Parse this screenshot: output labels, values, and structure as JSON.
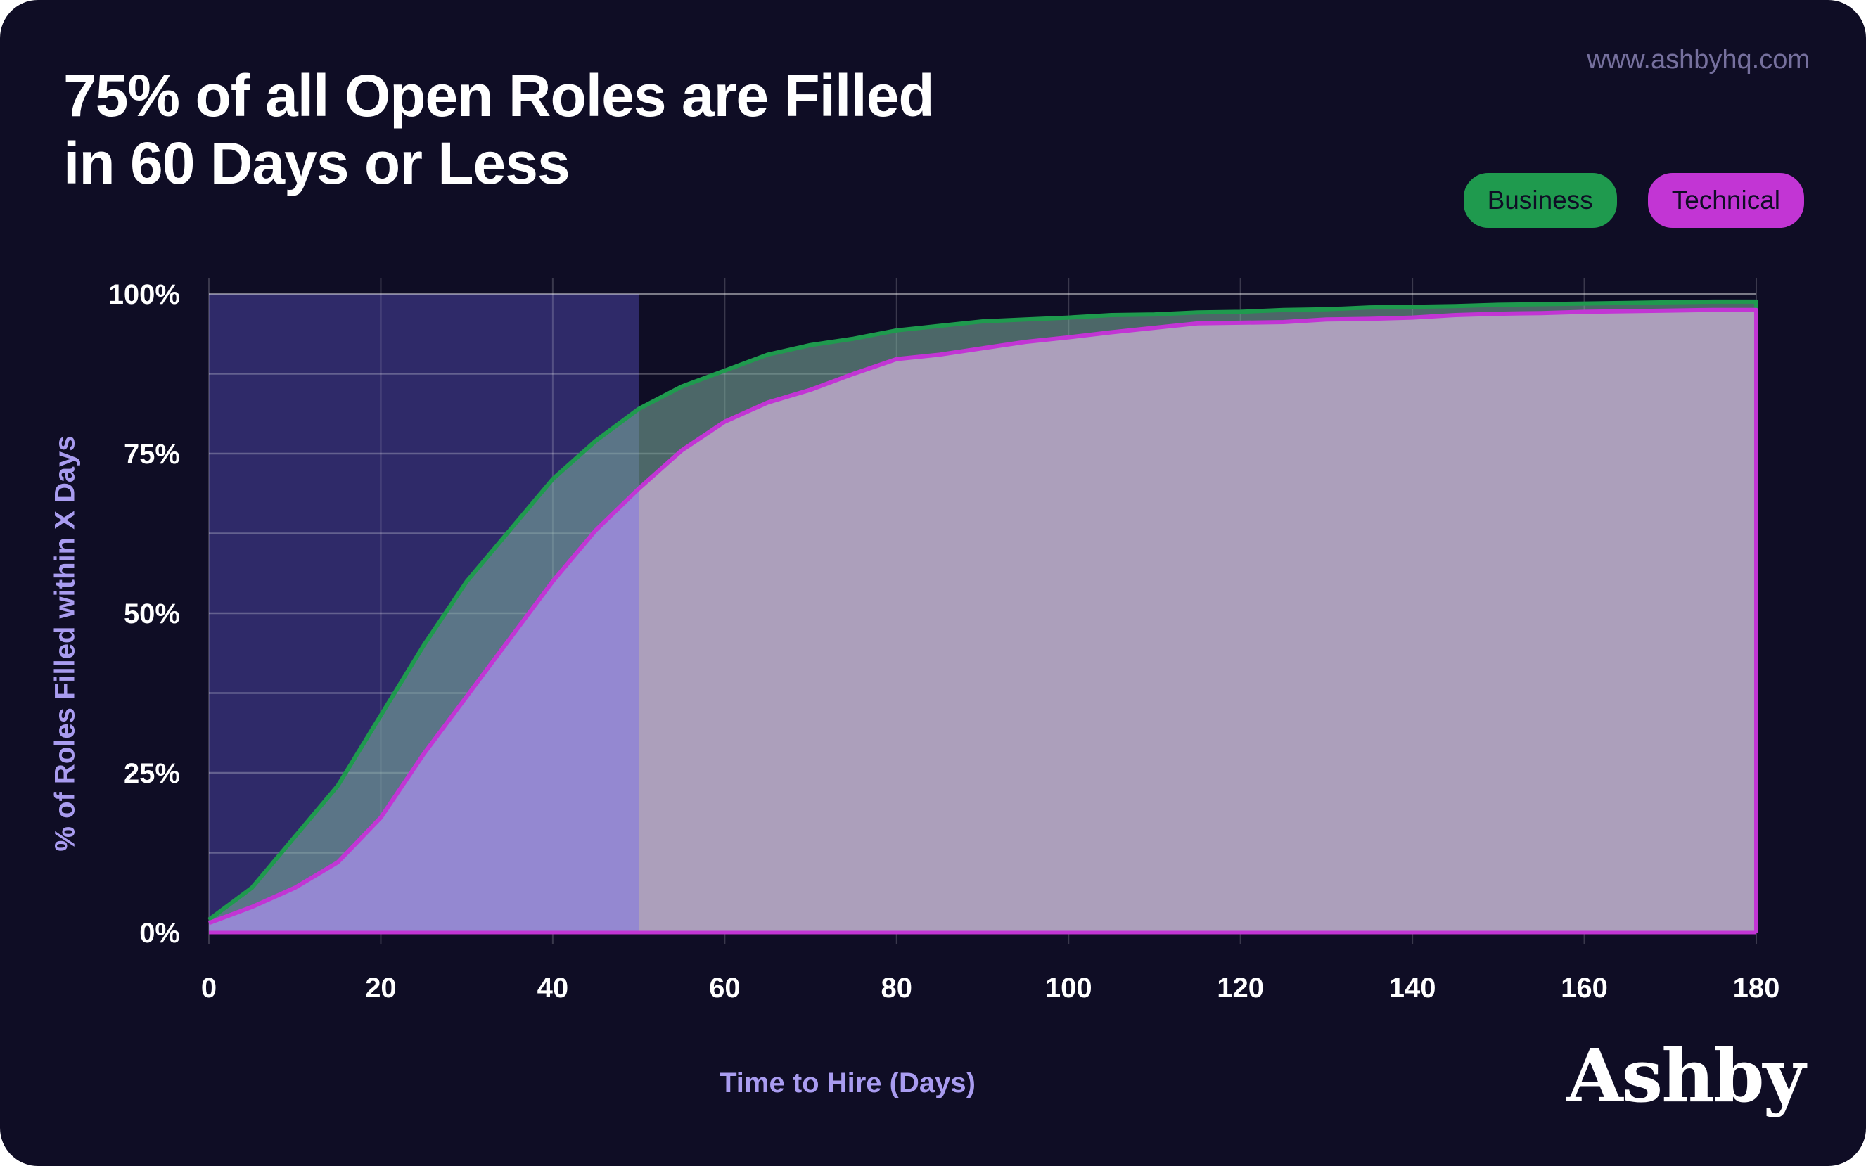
{
  "header": {
    "title_line1": "75% of all Open Roles are Filled",
    "title_line2": "in 60 Days or Less",
    "url": "www.ashbyhq.com"
  },
  "brand": {
    "logo_text": "Ashby"
  },
  "colors": {
    "background": "#0f0d25",
    "business": "#1f9a4e",
    "technical": "#c235d4",
    "highlight": "#2f2a69",
    "axis_label": "#a99cf0"
  },
  "chart_data": {
    "type": "area",
    "title": "75% of all Open Roles are Filled in 60 Days or Less",
    "xlabel": "Time to Hire (Days)",
    "ylabel": "% of Roles Filled within X Days",
    "xlim": [
      0,
      180
    ],
    "ylim": [
      0,
      100
    ],
    "xticks": [
      "0",
      "20",
      "40",
      "60",
      "80",
      "100",
      "120",
      "140",
      "160",
      "180"
    ],
    "yticks": [
      "0%",
      "25%",
      "50%",
      "75%",
      "100%"
    ],
    "grid": true,
    "legend_position": "top-right",
    "highlight_range": [
      0,
      50
    ],
    "x": [
      0,
      5,
      10,
      15,
      20,
      25,
      30,
      35,
      40,
      45,
      50,
      55,
      60,
      65,
      70,
      75,
      80,
      85,
      90,
      95,
      100,
      105,
      110,
      115,
      120,
      125,
      130,
      135,
      140,
      145,
      150,
      155,
      160,
      165,
      170,
      175,
      180
    ],
    "series": [
      {
        "name": "Business",
        "color": "#1f9a4e",
        "values": [
          2,
          7,
          15,
          23,
          34,
          45,
          55,
          63,
          71,
          77,
          82,
          85.5,
          88,
          90.5,
          92,
          93,
          94.3,
          95,
          95.7,
          96,
          96.3,
          96.7,
          96.8,
          97.1,
          97.2,
          97.5,
          97.6,
          97.9,
          98,
          98.1,
          98.3,
          98.4,
          98.5,
          98.6,
          98.7,
          98.8,
          98.8
        ]
      },
      {
        "name": "Technical",
        "color": "#c235d4",
        "values": [
          1.5,
          4,
          7,
          11,
          18,
          28,
          37,
          46,
          55,
          63,
          69.5,
          75.5,
          80,
          83,
          85,
          87.5,
          89.8,
          90.5,
          91.5,
          92.5,
          93.2,
          94,
          94.7,
          95.4,
          95.5,
          95.6,
          96,
          96.1,
          96.3,
          96.7,
          96.9,
          97,
          97.2,
          97.3,
          97.4,
          97.5,
          97.5
        ]
      }
    ]
  }
}
